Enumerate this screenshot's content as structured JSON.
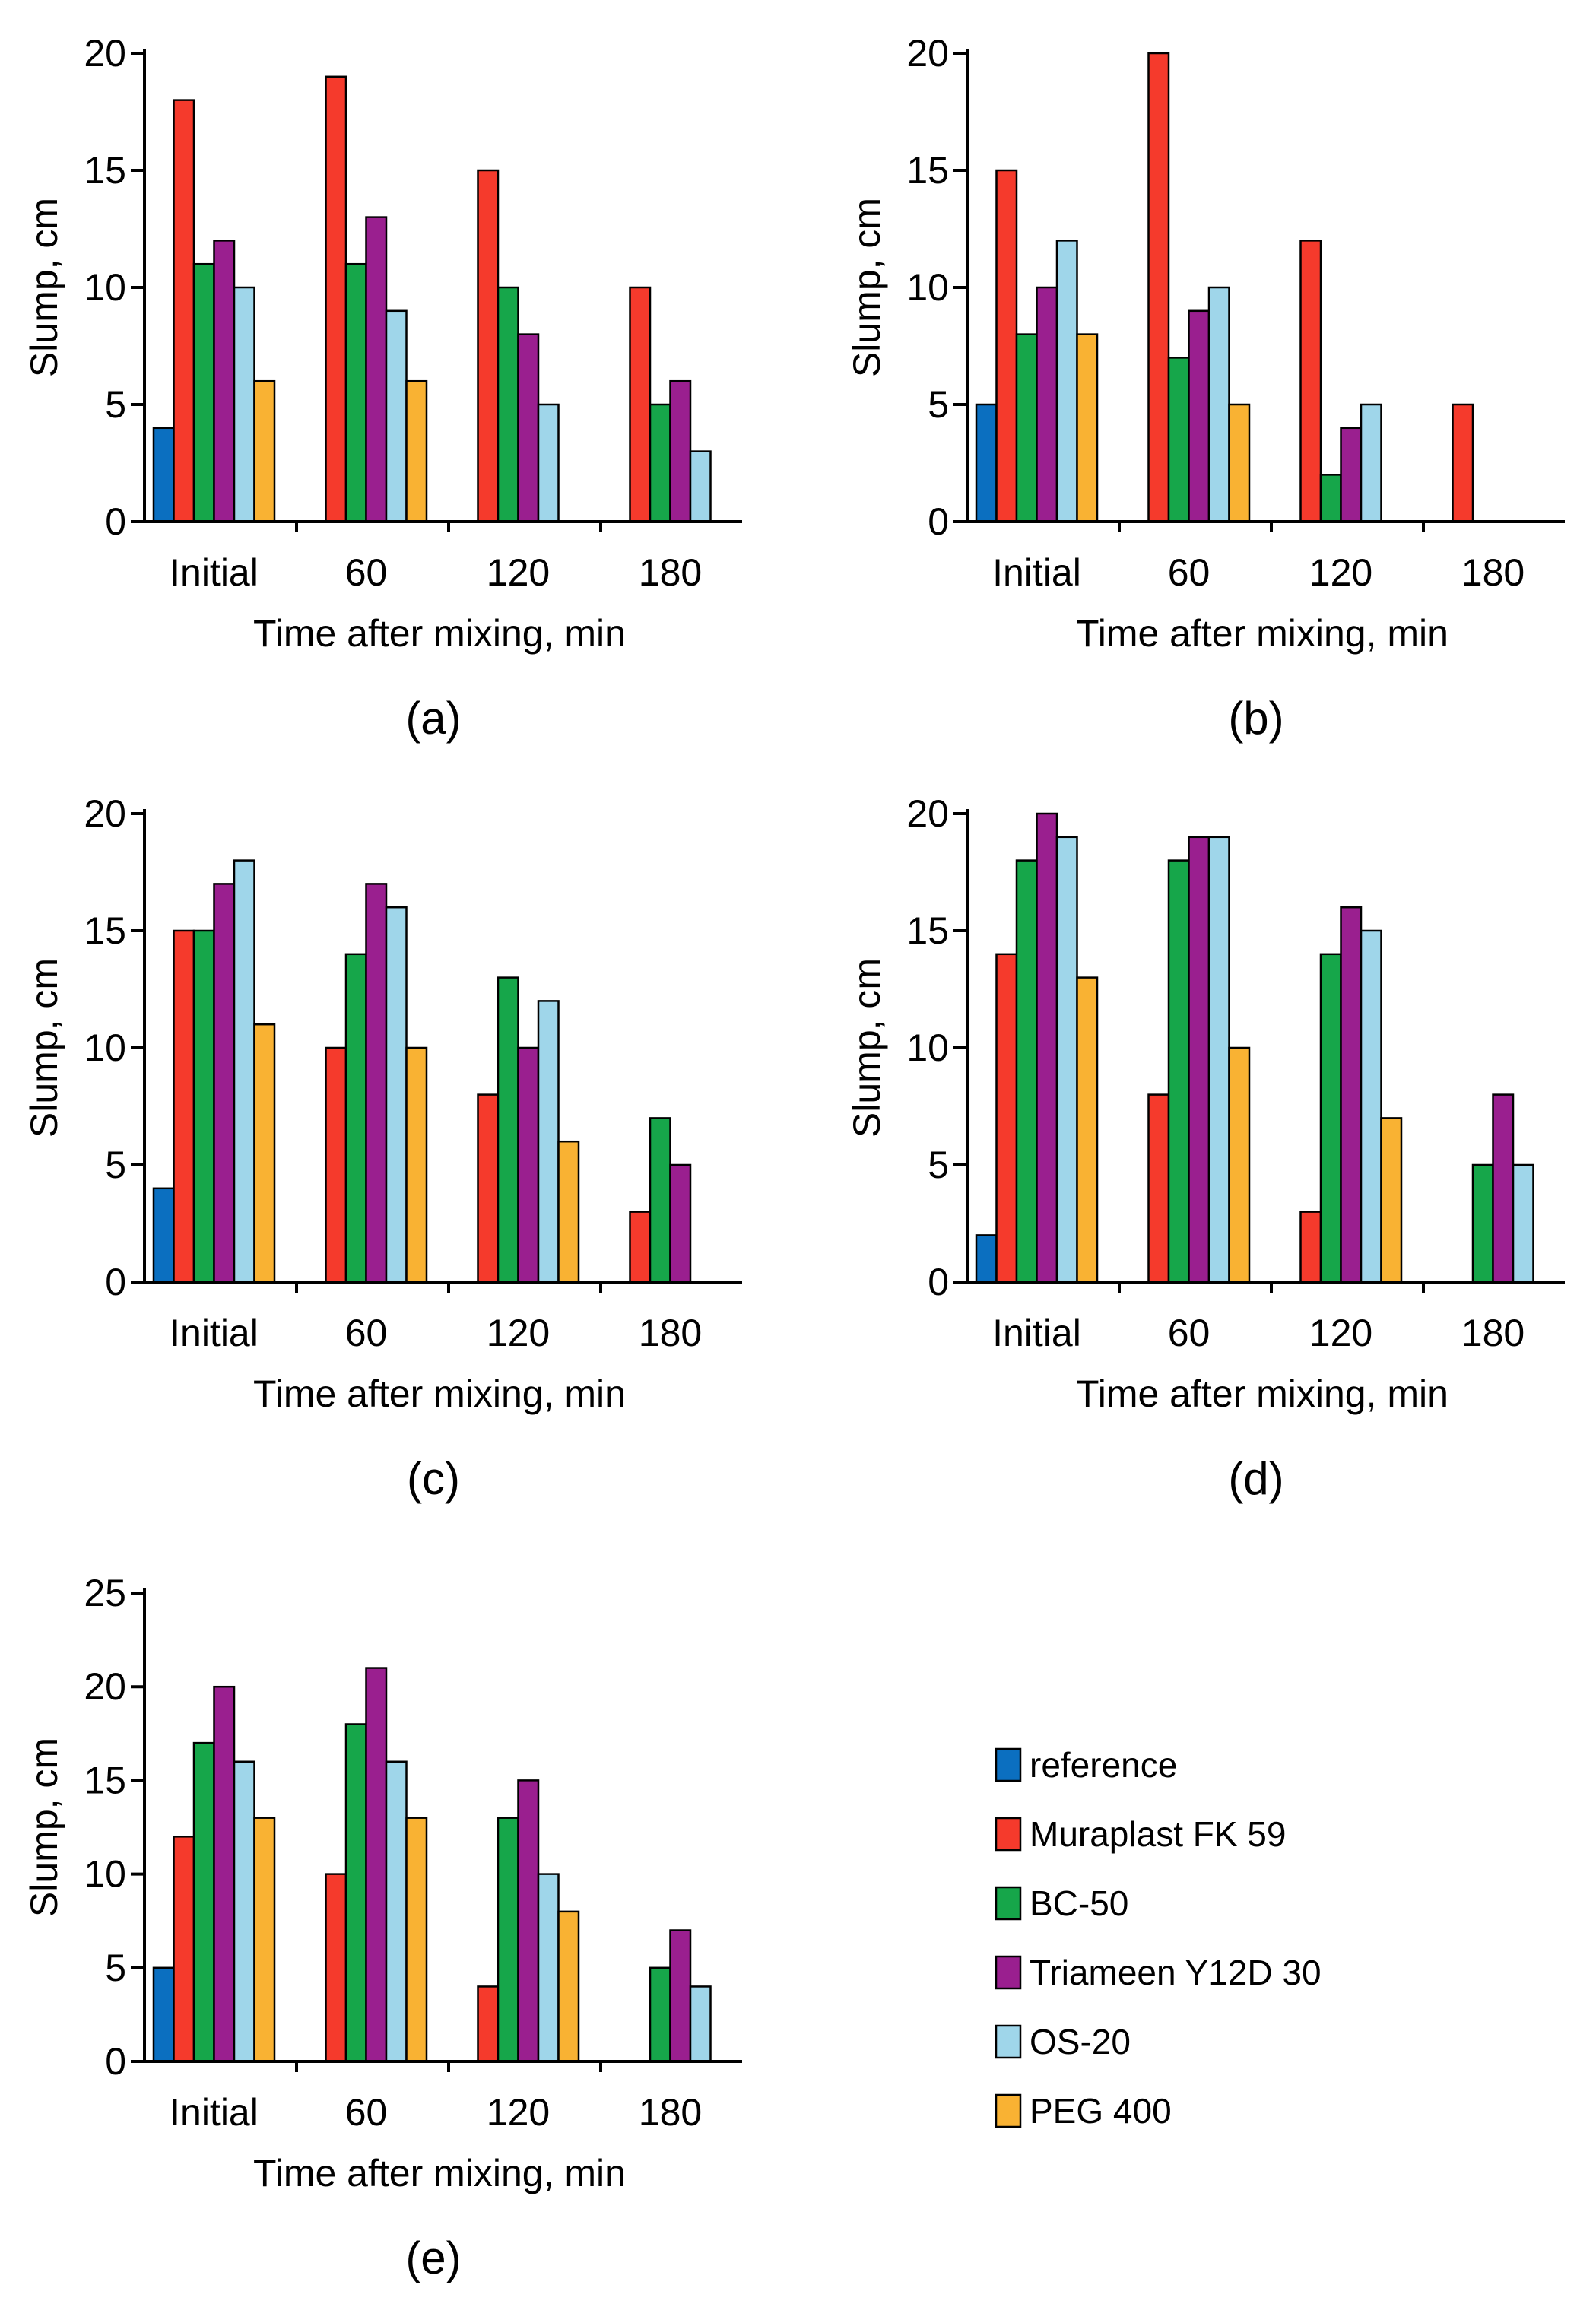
{
  "chart_data": [
    {
      "panel": "(a)",
      "type": "bar",
      "xlabel": "Time after mixing, min",
      "ylabel": "Slump, cm",
      "ylim": [
        0,
        20
      ],
      "yticks": [
        0,
        5,
        10,
        15,
        20
      ],
      "categories": [
        "Initial",
        "60",
        "120",
        "180"
      ],
      "series": [
        {
          "name": "reference",
          "values": [
            4,
            null,
            null,
            null
          ]
        },
        {
          "name": "Muraplast FK 59",
          "values": [
            18,
            19,
            15,
            10
          ]
        },
        {
          "name": "BC-50",
          "values": [
            11,
            11,
            10,
            5
          ]
        },
        {
          "name": "Triameen Y12D 30",
          "values": [
            12,
            13,
            8,
            6
          ]
        },
        {
          "name": "OS-20",
          "values": [
            10,
            9,
            5,
            3
          ]
        },
        {
          "name": "PEG 400",
          "values": [
            6,
            6,
            null,
            null
          ]
        }
      ]
    },
    {
      "panel": "(b)",
      "type": "bar",
      "xlabel": "Time after mixing, min",
      "ylabel": "Slump, cm",
      "ylim": [
        0,
        20
      ],
      "yticks": [
        0,
        5,
        10,
        15,
        20
      ],
      "categories": [
        "Initial",
        "60",
        "120",
        "180"
      ],
      "series": [
        {
          "name": "reference",
          "values": [
            5,
            null,
            null,
            null
          ]
        },
        {
          "name": "Muraplast FK 59",
          "values": [
            15,
            20,
            12,
            5
          ]
        },
        {
          "name": "BC-50",
          "values": [
            8,
            7,
            2,
            null
          ]
        },
        {
          "name": "Triameen Y12D 30",
          "values": [
            10,
            9,
            4,
            null
          ]
        },
        {
          "name": "OS-20",
          "values": [
            12,
            10,
            5,
            null
          ]
        },
        {
          "name": "PEG 400",
          "values": [
            8,
            5,
            null,
            null
          ]
        }
      ]
    },
    {
      "panel": "(c)",
      "type": "bar",
      "xlabel": "Time after mixing, min",
      "ylabel": "Slump, cm",
      "ylim": [
        0,
        20
      ],
      "yticks": [
        0,
        5,
        10,
        15,
        20
      ],
      "categories": [
        "Initial",
        "60",
        "120",
        "180"
      ],
      "series": [
        {
          "name": "reference",
          "values": [
            4,
            null,
            null,
            null
          ]
        },
        {
          "name": "Muraplast FK 59",
          "values": [
            15,
            10,
            8,
            3
          ]
        },
        {
          "name": "BC-50",
          "values": [
            15,
            14,
            13,
            7
          ]
        },
        {
          "name": "Triameen Y12D 30",
          "values": [
            17,
            17,
            10,
            5
          ]
        },
        {
          "name": "OS-20",
          "values": [
            18,
            16,
            12,
            null
          ]
        },
        {
          "name": "PEG 400",
          "values": [
            11,
            10,
            6,
            null
          ]
        }
      ]
    },
    {
      "panel": "(d)",
      "type": "bar",
      "xlabel": "Time after mixing, min",
      "ylabel": "Slump, cm",
      "ylim": [
        0,
        20
      ],
      "yticks": [
        0,
        5,
        10,
        15,
        20
      ],
      "categories": [
        "Initial",
        "60",
        "120",
        "180"
      ],
      "series": [
        {
          "name": "reference",
          "values": [
            2,
            null,
            null,
            null
          ]
        },
        {
          "name": "Muraplast FK 59",
          "values": [
            14,
            8,
            3,
            null
          ]
        },
        {
          "name": "BC-50",
          "values": [
            18,
            18,
            14,
            5
          ]
        },
        {
          "name": "Triameen Y12D 30",
          "values": [
            20,
            19,
            16,
            8
          ]
        },
        {
          "name": "OS-20",
          "values": [
            19,
            19,
            15,
            5
          ]
        },
        {
          "name": "PEG 400",
          "values": [
            13,
            10,
            7,
            null
          ]
        }
      ]
    },
    {
      "panel": "(e)",
      "type": "bar",
      "xlabel": "Time after mixing, min",
      "ylabel": "Slump, cm",
      "ylim": [
        0,
        25
      ],
      "yticks": [
        0,
        5,
        10,
        15,
        20,
        25
      ],
      "categories": [
        "Initial",
        "60",
        "120",
        "180"
      ],
      "series": [
        {
          "name": "reference",
          "values": [
            5,
            null,
            null,
            null
          ]
        },
        {
          "name": "Muraplast FK 59",
          "values": [
            12,
            10,
            4,
            null
          ]
        },
        {
          "name": "BC-50",
          "values": [
            17,
            18,
            13,
            5
          ]
        },
        {
          "name": "Triameen Y12D 30",
          "values": [
            20,
            21,
            15,
            7
          ]
        },
        {
          "name": "OS-20",
          "values": [
            16,
            16,
            10,
            4
          ]
        },
        {
          "name": "PEG 400",
          "values": [
            13,
            13,
            8,
            null
          ]
        }
      ]
    }
  ],
  "legend": {
    "entries": [
      {
        "name": "reference",
        "color": "#0b6fc0"
      },
      {
        "name": "Muraplast FK 59",
        "color": "#f53a2c"
      },
      {
        "name": "BC-50",
        "color": "#16a64a"
      },
      {
        "name": "Triameen Y12D 30",
        "color": "#9a1f8f"
      },
      {
        "name": "OS-20",
        "color": "#9fd6ea"
      },
      {
        "name": "PEG 400",
        "color": "#f9b233"
      }
    ]
  }
}
